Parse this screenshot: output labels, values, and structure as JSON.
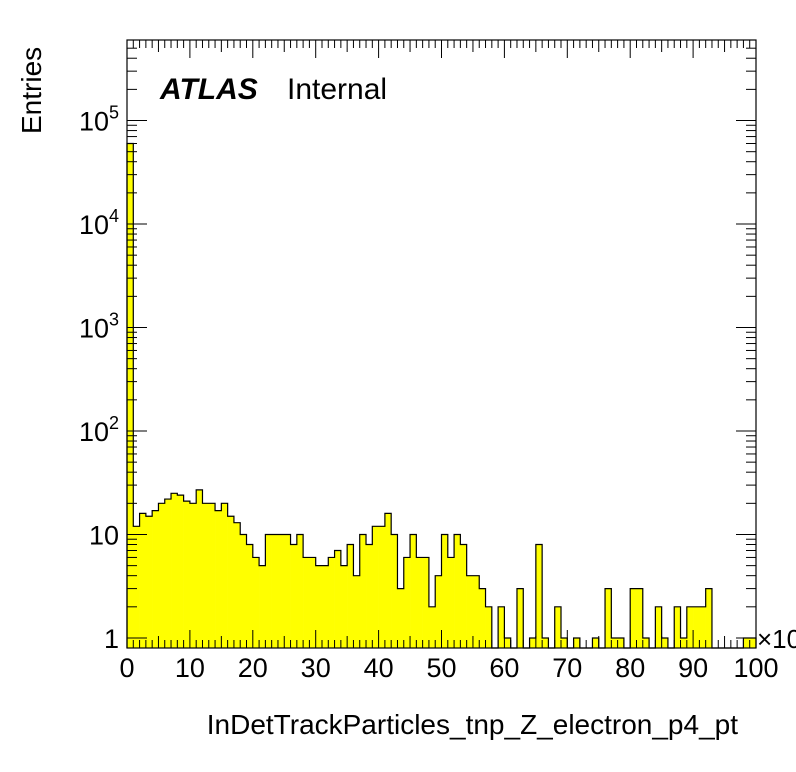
{
  "chart_data": {
    "type": "bar",
    "title": "",
    "xlabel": "InDetTrackParticles_tnp_Z_electron_p4_pt",
    "ylabel": "Entries",
    "x_multiplier_label": "×10",
    "xlim": [
      0,
      100
    ],
    "ylim": [
      0.8,
      600000
    ],
    "log_y": true,
    "bin_width": 1,
    "x_ticks": [
      "0",
      "10",
      "20",
      "30",
      "40",
      "50",
      "60",
      "70",
      "80",
      "90",
      "100"
    ],
    "y_tick_labels": [
      {
        "value": 1,
        "base": "1",
        "exp": ""
      },
      {
        "value": 10,
        "base": "10",
        "exp": ""
      },
      {
        "value": 100,
        "base": "10",
        "exp": "2"
      },
      {
        "value": 1000,
        "base": "10",
        "exp": "3"
      },
      {
        "value": 10000,
        "base": "10",
        "exp": "4"
      },
      {
        "value": 100000,
        "base": "10",
        "exp": "5"
      }
    ],
    "series": [
      {
        "values": [
          60000,
          12,
          16,
          15,
          17,
          20,
          22,
          25,
          24,
          21,
          20,
          27,
          20,
          20,
          17,
          20,
          15,
          13,
          10,
          8,
          6,
          5,
          10,
          10,
          10,
          10,
          8,
          10,
          6,
          6,
          5,
          5,
          6,
          7,
          5,
          8,
          4,
          10,
          8,
          12,
          12,
          16,
          10,
          3,
          6,
          10,
          6,
          6,
          2,
          4,
          10,
          6,
          10,
          8,
          4,
          4,
          3,
          2,
          0,
          2,
          1,
          0,
          3,
          0,
          1,
          8,
          1,
          0,
          2,
          1,
          0,
          1,
          0,
          0,
          1,
          0,
          3,
          1,
          1,
          0,
          3,
          3,
          1,
          0,
          2,
          1,
          0,
          2,
          1,
          2,
          2,
          2,
          3,
          0,
          0,
          0,
          0,
          0,
          1,
          1
        ],
        "fill": "#ffff00",
        "stroke": "#000000"
      }
    ],
    "grid": false,
    "legend": "none"
  },
  "atlas_label": {
    "experiment": "ATLAS",
    "status": "Internal"
  }
}
